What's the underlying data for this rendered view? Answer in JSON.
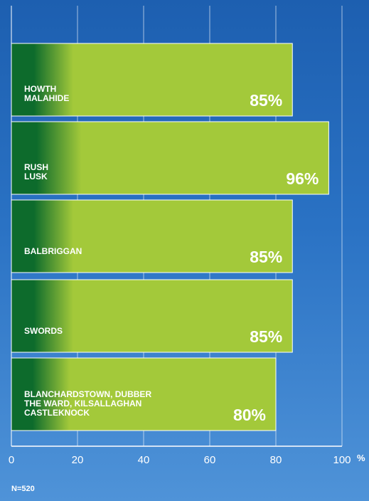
{
  "chart_data": {
    "type": "bar",
    "orientation": "horizontal",
    "categories": [
      [
        "HOWTH",
        "MALAHIDE"
      ],
      [
        "RUSH",
        "LUSK"
      ],
      [
        "BALBRIGGAN"
      ],
      [
        "SWORDS"
      ],
      [
        "BLANCHARDSTOWN, DUBBER",
        "THE WARD, KILSALLAGHAN",
        "CASTLEKNOCK"
      ]
    ],
    "values": [
      85,
      96,
      85,
      85,
      80
    ],
    "value_labels": [
      "85%",
      "96%",
      "85%",
      "85%",
      "80%"
    ],
    "xlim": [
      0,
      100
    ],
    "x_ticks": [
      "0",
      "20",
      "40",
      "60",
      "80",
      "100"
    ],
    "x_unit": "%",
    "grid": true,
    "note": "N=520"
  },
  "colors": {
    "bar_light": "#a3c93a",
    "bar_dark": "#0d6b2c",
    "grid": "#ffffff"
  }
}
